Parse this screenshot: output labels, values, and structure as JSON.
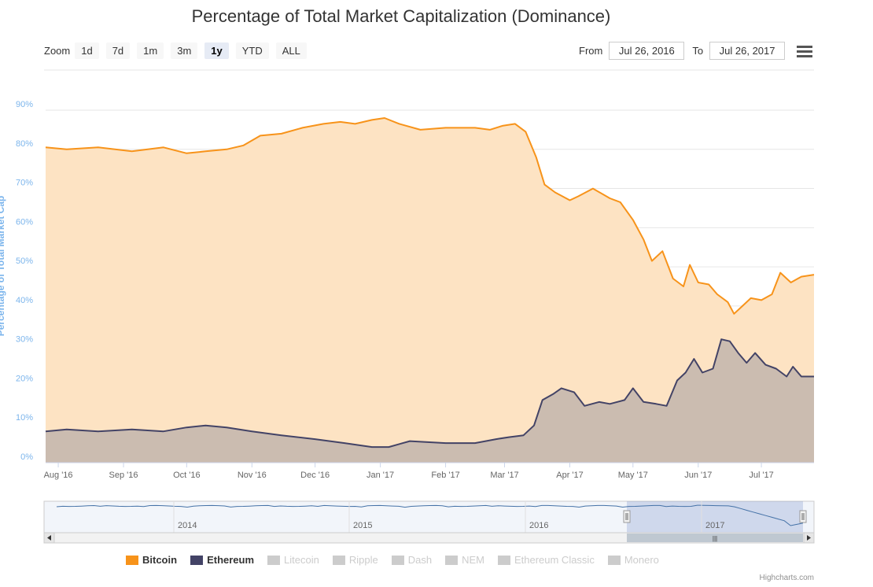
{
  "title": "Percentage of Total Market Capitalization (Dominance)",
  "toolbar": {
    "zoom_label": "Zoom",
    "zoom_buttons": [
      "1d",
      "7d",
      "1m",
      "3m",
      "1y",
      "YTD",
      "ALL"
    ],
    "active_zoom": "1y",
    "from_label": "From",
    "from_value": "Jul 26, 2016",
    "to_label": "To",
    "to_value": "Jul 26, 2017"
  },
  "credits": "Highcharts.com",
  "chart_data": {
    "type": "area",
    "title": "Percentage of Total Market Capitalization (Dominance)",
    "ylabel": "Percentage of Total Market Cap",
    "ylim": [
      0,
      90
    ],
    "yticks": [
      "0%",
      "10%",
      "20%",
      "30%",
      "40%",
      "50%",
      "60%",
      "70%",
      "80%",
      "90%"
    ],
    "xlim": [
      "2016-07-26",
      "2017-07-26"
    ],
    "xticks": [
      {
        "label": "Aug '16",
        "date": "2016-08-01"
      },
      {
        "label": "Sep '16",
        "date": "2016-09-01"
      },
      {
        "label": "Oct '16",
        "date": "2016-10-01"
      },
      {
        "label": "Nov '16",
        "date": "2016-11-01"
      },
      {
        "label": "Dec '16",
        "date": "2016-12-01"
      },
      {
        "label": "Jan '17",
        "date": "2017-01-01"
      },
      {
        "label": "Feb '17",
        "date": "2017-02-01"
      },
      {
        "label": "Mar '17",
        "date": "2017-03-01"
      },
      {
        "label": "Apr '17",
        "date": "2017-04-01"
      },
      {
        "label": "May '17",
        "date": "2017-05-01"
      },
      {
        "label": "Jun '17",
        "date": "2017-06-01"
      },
      {
        "label": "Jul '17",
        "date": "2017-07-01"
      }
    ],
    "grid": true,
    "legend_position": "bottom-center",
    "series": [
      {
        "name": "Bitcoin",
        "color": "#f7931a",
        "x": [
          "2016-07-26",
          "2016-08-05",
          "2016-08-20",
          "2016-09-05",
          "2016-09-20",
          "2016-10-01",
          "2016-10-10",
          "2016-10-20",
          "2016-10-28",
          "2016-11-05",
          "2016-11-15",
          "2016-11-25",
          "2016-12-05",
          "2016-12-13",
          "2016-12-20",
          "2016-12-28",
          "2017-01-03",
          "2017-01-10",
          "2017-01-20",
          "2017-02-01",
          "2017-02-15",
          "2017-02-22",
          "2017-02-28",
          "2017-03-06",
          "2017-03-11",
          "2017-03-16",
          "2017-03-20",
          "2017-03-25",
          "2017-04-01",
          "2017-04-05",
          "2017-04-12",
          "2017-04-20",
          "2017-04-25",
          "2017-05-01",
          "2017-05-06",
          "2017-05-10",
          "2017-05-15",
          "2017-05-20",
          "2017-05-25",
          "2017-05-28",
          "2017-06-01",
          "2017-06-06",
          "2017-06-10",
          "2017-06-15",
          "2017-06-18",
          "2017-06-22",
          "2017-06-26",
          "2017-07-01",
          "2017-07-06",
          "2017-07-10",
          "2017-07-15",
          "2017-07-20",
          "2017-07-26"
        ],
        "values": [
          80.5,
          80.0,
          80.5,
          79.5,
          80.5,
          79.0,
          79.5,
          80.0,
          81.0,
          83.5,
          84.0,
          85.5,
          86.5,
          87.0,
          86.5,
          87.5,
          88.0,
          86.5,
          85.0,
          85.5,
          85.5,
          85.0,
          86.0,
          86.5,
          84.5,
          78.0,
          71.0,
          69.0,
          67.0,
          68.0,
          70.0,
          67.5,
          66.5,
          62.0,
          57.0,
          51.5,
          54.0,
          47.0,
          45.0,
          50.5,
          46.0,
          45.5,
          43.0,
          41.0,
          38.0,
          40.0,
          42.0,
          41.5,
          43.0,
          48.5,
          46.0,
          47.5,
          48.0
        ]
      },
      {
        "name": "Ethereum",
        "color": "#434348",
        "x": [
          "2016-07-26",
          "2016-08-05",
          "2016-08-20",
          "2016-09-05",
          "2016-09-20",
          "2016-10-01",
          "2016-10-10",
          "2016-10-20",
          "2016-11-01",
          "2016-11-15",
          "2016-12-01",
          "2016-12-15",
          "2016-12-28",
          "2017-01-05",
          "2017-01-15",
          "2017-02-01",
          "2017-02-15",
          "2017-02-25",
          "2017-03-03",
          "2017-03-10",
          "2017-03-15",
          "2017-03-19",
          "2017-03-24",
          "2017-03-28",
          "2017-04-03",
          "2017-04-08",
          "2017-04-15",
          "2017-04-20",
          "2017-04-27",
          "2017-05-01",
          "2017-05-06",
          "2017-05-12",
          "2017-05-17",
          "2017-05-22",
          "2017-05-26",
          "2017-05-30",
          "2017-06-03",
          "2017-06-08",
          "2017-06-12",
          "2017-06-16",
          "2017-06-20",
          "2017-06-24",
          "2017-06-28",
          "2017-07-03",
          "2017-07-08",
          "2017-07-13",
          "2017-07-16",
          "2017-07-20",
          "2017-07-26"
        ],
        "values": [
          8.0,
          8.5,
          8.0,
          8.5,
          8.0,
          9.0,
          9.5,
          9.0,
          8.0,
          7.0,
          6.0,
          5.0,
          4.0,
          4.0,
          5.5,
          5.0,
          5.0,
          6.0,
          6.5,
          7.0,
          9.5,
          16.0,
          17.5,
          19.0,
          18.0,
          14.5,
          15.5,
          15.0,
          16.0,
          19.0,
          15.5,
          15.0,
          14.5,
          21.0,
          23.0,
          26.5,
          23.0,
          24.0,
          31.5,
          31.0,
          28.0,
          25.5,
          28.0,
          25.0,
          24.0,
          22.0,
          24.5,
          22.0,
          22.0
        ]
      },
      {
        "name": "Litecoin",
        "color": "#cccccc",
        "visible": false
      },
      {
        "name": "Ripple",
        "color": "#cccccc",
        "visible": false
      },
      {
        "name": "Dash",
        "color": "#cccccc",
        "visible": false
      },
      {
        "name": "NEM",
        "color": "#cccccc",
        "visible": false
      },
      {
        "name": "Ethereum Classic",
        "color": "#cccccc",
        "visible": false
      },
      {
        "name": "Monero",
        "color": "#cccccc",
        "visible": false
      }
    ],
    "navigator": {
      "labels": [
        "2014",
        "2015",
        "2016",
        "2017"
      ],
      "selected_range": [
        "2016-07-26",
        "2017-07-26"
      ]
    }
  },
  "colors": {
    "bitcoin_line": "#f7931a",
    "bitcoin_fill": "#fde3c3",
    "ethereum_line": "#434366",
    "ethereum_fill": "#cbbcb0",
    "grid": "#e6e6e6",
    "axis_label": "#7cb5ec"
  }
}
